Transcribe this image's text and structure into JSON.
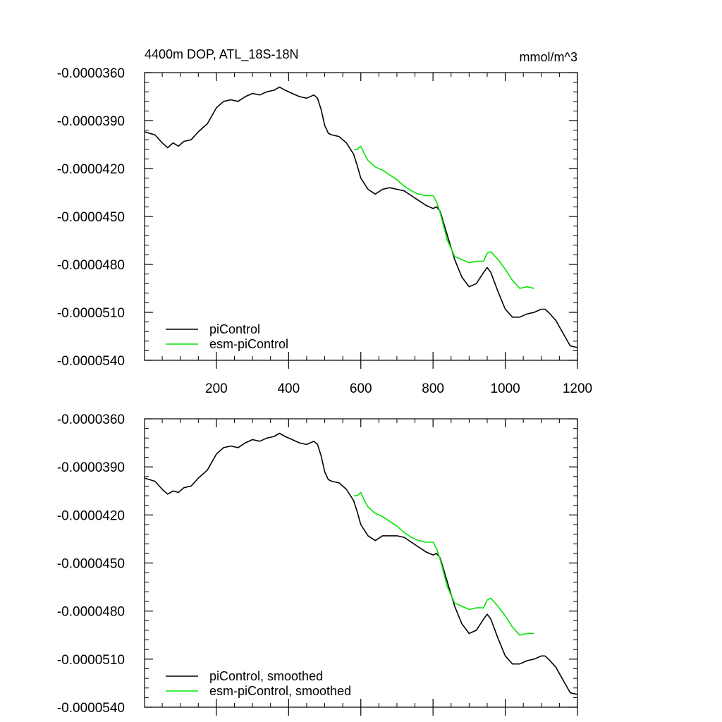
{
  "chart_data": [
    {
      "type": "line",
      "title": "4400m DOP, ATL_18S-18N",
      "units": "mmol/m^3",
      "xlabel": "",
      "ylabel": "",
      "xlim": [
        1,
        1200
      ],
      "ylim": [
        -5.4e-05,
        -3.6e-05
      ],
      "x_ticks": [
        200,
        400,
        600,
        800,
        1000,
        1200
      ],
      "x_tick_labels": [
        "200",
        "400",
        "600",
        "800",
        "1000",
        "1200"
      ],
      "y_ticks": [
        -3.6e-05,
        -3.9e-05,
        -4.2e-05,
        -4.5e-05,
        -4.8e-05,
        -5.1e-05,
        -5.4e-05
      ],
      "y_tick_labels": [
        "-0.0000360",
        "-0.0000390",
        "-0.0000420",
        "-0.0000450",
        "-0.0000480",
        "-0.0000510",
        "-0.0000540"
      ],
      "legend_position": "bottom-left",
      "series": [
        {
          "name": "piControl",
          "color": "#000000",
          "x": [
            1,
            30,
            50,
            65,
            80,
            95,
            110,
            130,
            150,
            175,
            200,
            220,
            240,
            260,
            280,
            300,
            320,
            340,
            360,
            375,
            390,
            410,
            430,
            450,
            470,
            480,
            490,
            500,
            510,
            520,
            540,
            560,
            580,
            590,
            600,
            620,
            640,
            660,
            680,
            700,
            720,
            740,
            760,
            780,
            800,
            810,
            820,
            840,
            860,
            880,
            900,
            920,
            940,
            950,
            960,
            980,
            1000,
            1020,
            1040,
            1060,
            1080,
            1100,
            1110,
            1120,
            1140,
            1160,
            1180,
            1200
          ],
          "values": [
            -3.97e-05,
            -3.99e-05,
            -4.04e-05,
            -4.07e-05,
            -4.04e-05,
            -4.06e-05,
            -4.03e-05,
            -4.02e-05,
            -3.97e-05,
            -3.92e-05,
            -3.82e-05,
            -3.78e-05,
            -3.77e-05,
            -3.78e-05,
            -3.75e-05,
            -3.73e-05,
            -3.74e-05,
            -3.72e-05,
            -3.71e-05,
            -3.69e-05,
            -3.71e-05,
            -3.73e-05,
            -3.75e-05,
            -3.76e-05,
            -3.74e-05,
            -3.76e-05,
            -3.83e-05,
            -3.93e-05,
            -3.98e-05,
            -3.99e-05,
            -4e-05,
            -4.04e-05,
            -4.11e-05,
            -4.18e-05,
            -4.26e-05,
            -4.33e-05,
            -4.36e-05,
            -4.33e-05,
            -4.32e-05,
            -4.33e-05,
            -4.34e-05,
            -4.37e-05,
            -4.4e-05,
            -4.43e-05,
            -4.45e-05,
            -4.44e-05,
            -4.47e-05,
            -4.62e-05,
            -4.77e-05,
            -4.88e-05,
            -4.94e-05,
            -4.92e-05,
            -4.85e-05,
            -4.82e-05,
            -4.85e-05,
            -4.97e-05,
            -5.08e-05,
            -5.13e-05,
            -5.13e-05,
            -5.11e-05,
            -5.1e-05,
            -5.08e-05,
            -5.08e-05,
            -5.1e-05,
            -5.15e-05,
            -5.23e-05,
            -5.31e-05,
            -5.32e-05
          ]
        },
        {
          "name": "esm-piControl",
          "color": "#00e600",
          "x": [
            581,
            590,
            600,
            610,
            620,
            640,
            660,
            680,
            700,
            720,
            740,
            760,
            780,
            800,
            810,
            820,
            840,
            860,
            880,
            900,
            920,
            940,
            950,
            960,
            980,
            1000,
            1020,
            1040,
            1060,
            1080
          ],
          "values": [
            -4.08e-05,
            -4.08e-05,
            -4.06e-05,
            -4.11e-05,
            -4.15e-05,
            -4.19e-05,
            -4.21e-05,
            -4.24e-05,
            -4.27e-05,
            -4.31e-05,
            -4.34e-05,
            -4.36e-05,
            -4.37e-05,
            -4.37e-05,
            -4.41e-05,
            -4.48e-05,
            -4.65e-05,
            -4.75e-05,
            -4.77e-05,
            -4.79e-05,
            -4.78e-05,
            -4.78e-05,
            -4.73e-05,
            -4.72e-05,
            -4.77e-05,
            -4.83e-05,
            -4.9e-05,
            -4.95e-05,
            -4.94e-05,
            -4.95e-05
          ]
        }
      ]
    },
    {
      "type": "line",
      "title": "",
      "xlabel": "",
      "ylabel": "",
      "xlim": [
        1,
        1200
      ],
      "ylim": [
        -5.4e-05,
        -3.6e-05
      ],
      "x_ticks": [
        200,
        400,
        600,
        800,
        1000,
        1200
      ],
      "x_tick_labels": [],
      "y_ticks": [
        -3.6e-05,
        -3.9e-05,
        -4.2e-05,
        -4.5e-05,
        -4.8e-05,
        -5.1e-05,
        -5.4e-05
      ],
      "y_tick_labels": [
        "-0.0000360",
        "-0.0000390",
        "-0.0000420",
        "-0.0000450",
        "-0.0000480",
        "-0.0000510",
        "-0.0000540"
      ],
      "legend_position": "bottom-left",
      "series": [
        {
          "name": "piControl, smoothed",
          "color": "#000000",
          "x": [
            1,
            30,
            50,
            65,
            80,
            95,
            110,
            130,
            150,
            175,
            200,
            220,
            240,
            260,
            280,
            300,
            320,
            340,
            360,
            375,
            390,
            410,
            430,
            450,
            470,
            480,
            490,
            500,
            510,
            520,
            540,
            560,
            580,
            590,
            600,
            620,
            640,
            660,
            680,
            700,
            720,
            740,
            760,
            780,
            800,
            810,
            820,
            840,
            860,
            880,
            900,
            920,
            940,
            950,
            960,
            980,
            1000,
            1020,
            1040,
            1060,
            1080,
            1100,
            1110,
            1120,
            1140,
            1160,
            1180,
            1200
          ],
          "values": [
            -3.97e-05,
            -3.99e-05,
            -4.04e-05,
            -4.07e-05,
            -4.05e-05,
            -4.06e-05,
            -4.03e-05,
            -4.02e-05,
            -3.97e-05,
            -3.92e-05,
            -3.82e-05,
            -3.78e-05,
            -3.77e-05,
            -3.78e-05,
            -3.75e-05,
            -3.73e-05,
            -3.74e-05,
            -3.72e-05,
            -3.71e-05,
            -3.69e-05,
            -3.71e-05,
            -3.73e-05,
            -3.75e-05,
            -3.76e-05,
            -3.74e-05,
            -3.76e-05,
            -3.83e-05,
            -3.93e-05,
            -3.98e-05,
            -3.99e-05,
            -4e-05,
            -4.04e-05,
            -4.11e-05,
            -4.18e-05,
            -4.26e-05,
            -4.33e-05,
            -4.36e-05,
            -4.33e-05,
            -4.33e-05,
            -4.33e-05,
            -4.34e-05,
            -4.37e-05,
            -4.4e-05,
            -4.43e-05,
            -4.45e-05,
            -4.44e-05,
            -4.47e-05,
            -4.62e-05,
            -4.77e-05,
            -4.88e-05,
            -4.94e-05,
            -4.92e-05,
            -4.85e-05,
            -4.82e-05,
            -4.85e-05,
            -4.97e-05,
            -5.08e-05,
            -5.13e-05,
            -5.13e-05,
            -5.11e-05,
            -5.1e-05,
            -5.08e-05,
            -5.08e-05,
            -5.1e-05,
            -5.15e-05,
            -5.23e-05,
            -5.31e-05,
            -5.32e-05
          ]
        },
        {
          "name": "esm-piControl, smoothed",
          "color": "#00e600",
          "x": [
            581,
            590,
            600,
            610,
            620,
            640,
            660,
            680,
            700,
            720,
            740,
            760,
            780,
            800,
            810,
            820,
            840,
            860,
            880,
            900,
            920,
            940,
            950,
            960,
            980,
            1000,
            1020,
            1040,
            1060,
            1080
          ],
          "values": [
            -4.08e-05,
            -4.08e-05,
            -4.06e-05,
            -4.11e-05,
            -4.15e-05,
            -4.19e-05,
            -4.21e-05,
            -4.24e-05,
            -4.27e-05,
            -4.31e-05,
            -4.34e-05,
            -4.36e-05,
            -4.37e-05,
            -4.37e-05,
            -4.41e-05,
            -4.48e-05,
            -4.65e-05,
            -4.75e-05,
            -4.77e-05,
            -4.79e-05,
            -4.78e-05,
            -4.78e-05,
            -4.73e-05,
            -4.72e-05,
            -4.77e-05,
            -4.83e-05,
            -4.9e-05,
            -4.95e-05,
            -4.94e-05,
            -4.94e-05
          ]
        }
      ]
    }
  ]
}
